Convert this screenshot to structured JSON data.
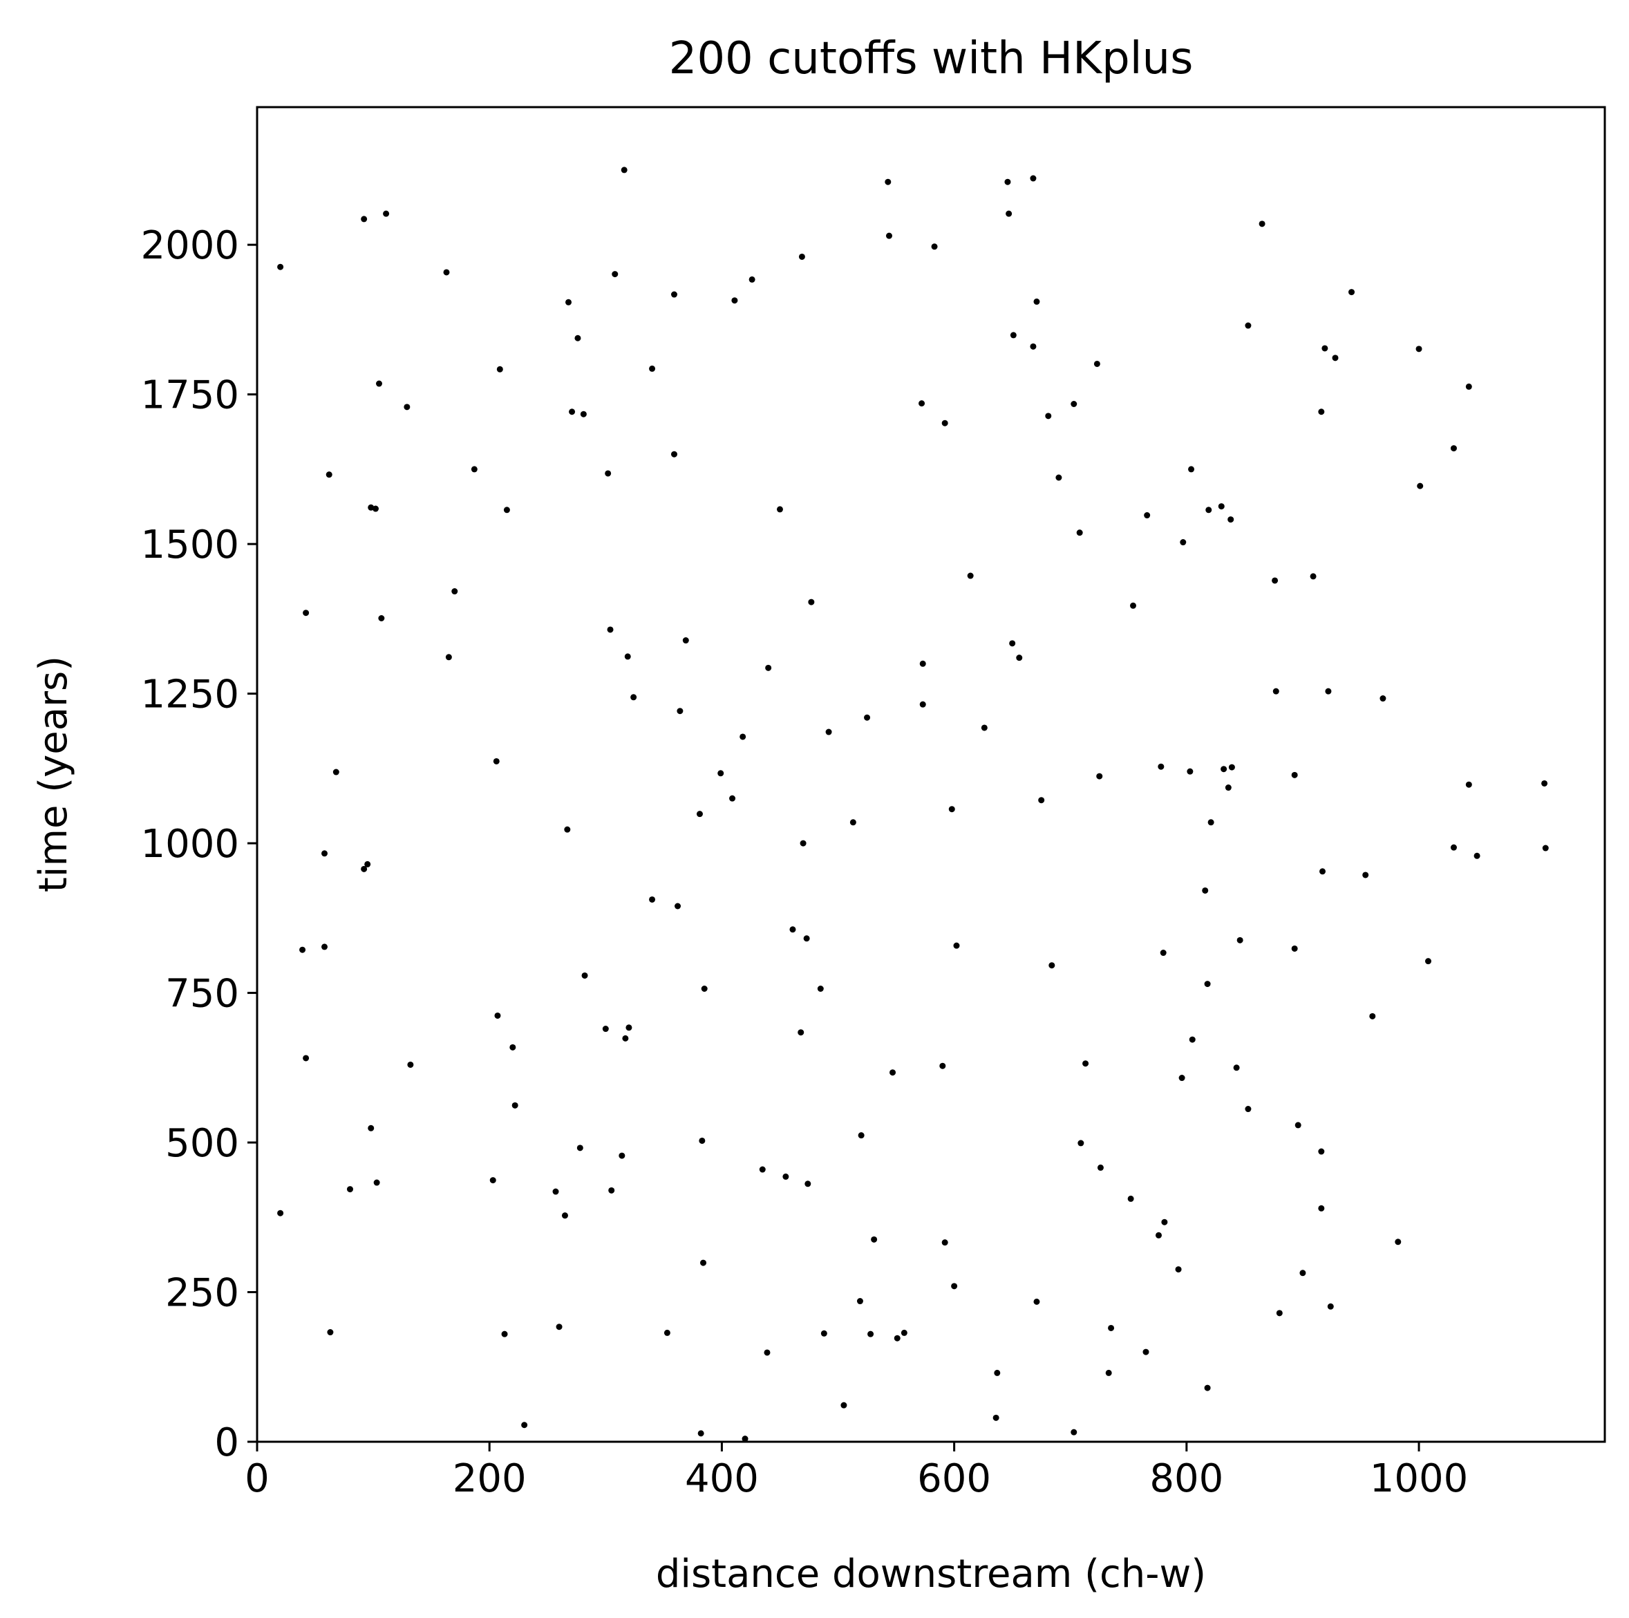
{
  "chart_data": {
    "type": "scatter",
    "title": "200 cutoffs with HKplus",
    "xlabel": "distance downstream (ch-w)",
    "ylabel": "time (years)",
    "xlim": [
      0,
      1160
    ],
    "ylim": [
      0,
      2230
    ],
    "xticks": [
      0,
      200,
      400,
      600,
      800,
      1000
    ],
    "yticks": [
      0,
      250,
      500,
      750,
      1000,
      1250,
      1500,
      1750,
      2000
    ],
    "grid": false,
    "legend": "none",
    "marker_color": "#000000",
    "points": [
      [
        20,
        1963
      ],
      [
        20,
        382
      ],
      [
        39,
        822
      ],
      [
        42,
        1385
      ],
      [
        42,
        641
      ],
      [
        58,
        983
      ],
      [
        58,
        827
      ],
      [
        62,
        1616
      ],
      [
        63,
        183
      ],
      [
        68,
        1119
      ],
      [
        80,
        422
      ],
      [
        92,
        2043
      ],
      [
        92,
        957
      ],
      [
        95,
        965
      ],
      [
        98,
        1561
      ],
      [
        98,
        524
      ],
      [
        102,
        1559
      ],
      [
        103,
        433
      ],
      [
        105,
        1768
      ],
      [
        107,
        1376
      ],
      [
        111,
        2052
      ],
      [
        129,
        1729
      ],
      [
        132,
        630
      ],
      [
        163,
        1954
      ],
      [
        165,
        1311
      ],
      [
        170,
        1421
      ],
      [
        187,
        1625
      ],
      [
        203,
        437
      ],
      [
        206,
        1137
      ],
      [
        207,
        712
      ],
      [
        209,
        1792
      ],
      [
        213,
        180
      ],
      [
        215,
        1557
      ],
      [
        220,
        659
      ],
      [
        222,
        562
      ],
      [
        230,
        28
      ],
      [
        257,
        418
      ],
      [
        260,
        192
      ],
      [
        265,
        378
      ],
      [
        267,
        1023
      ],
      [
        268,
        1904
      ],
      [
        271,
        1721
      ],
      [
        276,
        1844
      ],
      [
        278,
        491
      ],
      [
        281,
        1717
      ],
      [
        282,
        779
      ],
      [
        300,
        690
      ],
      [
        302,
        1618
      ],
      [
        304,
        1357
      ],
      [
        305,
        420
      ],
      [
        308,
        1951
      ],
      [
        314,
        478
      ],
      [
        316,
        2125
      ],
      [
        317,
        674
      ],
      [
        319,
        1312
      ],
      [
        320,
        692
      ],
      [
        324,
        1244
      ],
      [
        340,
        1793
      ],
      [
        340,
        906
      ],
      [
        353,
        182
      ],
      [
        359,
        1917
      ],
      [
        359,
        1650
      ],
      [
        362,
        895
      ],
      [
        364,
        1221
      ],
      [
        369,
        1339
      ],
      [
        381,
        1049
      ],
      [
        382,
        14
      ],
      [
        383,
        503
      ],
      [
        384,
        299
      ],
      [
        385,
        757
      ],
      [
        399,
        1117
      ],
      [
        409,
        1075
      ],
      [
        411,
        1907
      ],
      [
        418,
        1178
      ],
      [
        420,
        5
      ],
      [
        426,
        1942
      ],
      [
        435,
        455
      ],
      [
        439,
        149
      ],
      [
        440,
        1293
      ],
      [
        450,
        1558
      ],
      [
        455,
        443
      ],
      [
        461,
        856
      ],
      [
        468,
        684
      ],
      [
        469,
        1980
      ],
      [
        470,
        1000
      ],
      [
        473,
        841
      ],
      [
        474,
        431
      ],
      [
        477,
        1403
      ],
      [
        485,
        757
      ],
      [
        488,
        181
      ],
      [
        492,
        1186
      ],
      [
        505,
        61
      ],
      [
        513,
        1035
      ],
      [
        519,
        235
      ],
      [
        520,
        512
      ],
      [
        525,
        1210
      ],
      [
        528,
        180
      ],
      [
        531,
        338
      ],
      [
        543,
        2105
      ],
      [
        544,
        2015
      ],
      [
        547,
        617
      ],
      [
        551,
        173
      ],
      [
        557,
        182
      ],
      [
        572,
        1735
      ],
      [
        573,
        1300
      ],
      [
        573,
        1232
      ],
      [
        583,
        1997
      ],
      [
        590,
        628
      ],
      [
        592,
        333
      ],
      [
        592,
        1702
      ],
      [
        598,
        1057
      ],
      [
        600,
        260
      ],
      [
        602,
        829
      ],
      [
        614,
        1447
      ],
      [
        626,
        1193
      ],
      [
        636,
        40
      ],
      [
        637,
        115
      ],
      [
        646,
        2105
      ],
      [
        647,
        2052
      ],
      [
        650,
        1334
      ],
      [
        651,
        1849
      ],
      [
        656,
        1310
      ],
      [
        668,
        2111
      ],
      [
        668,
        1830
      ],
      [
        671,
        1905
      ],
      [
        671,
        234
      ],
      [
        675,
        1072
      ],
      [
        681,
        1714
      ],
      [
        684,
        796
      ],
      [
        690,
        1611
      ],
      [
        703,
        1734
      ],
      [
        703,
        16
      ],
      [
        708,
        1519
      ],
      [
        709,
        499
      ],
      [
        713,
        632
      ],
      [
        723,
        1801
      ],
      [
        725,
        1112
      ],
      [
        726,
        458
      ],
      [
        733,
        115
      ],
      [
        735,
        190
      ],
      [
        752,
        406
      ],
      [
        754,
        1397
      ],
      [
        765,
        150
      ],
      [
        766,
        1548
      ],
      [
        776,
        345
      ],
      [
        778,
        1128
      ],
      [
        780,
        817
      ],
      [
        781,
        367
      ],
      [
        793,
        288
      ],
      [
        796,
        608
      ],
      [
        797,
        1503
      ],
      [
        803,
        1120
      ],
      [
        804,
        1625
      ],
      [
        805,
        672
      ],
      [
        816,
        921
      ],
      [
        818,
        765
      ],
      [
        818,
        90
      ],
      [
        819,
        1557
      ],
      [
        821,
        1035
      ],
      [
        830,
        1563
      ],
      [
        832,
        1124
      ],
      [
        836,
        1093
      ],
      [
        838,
        1541
      ],
      [
        839,
        1127
      ],
      [
        843,
        625
      ],
      [
        846,
        838
      ],
      [
        853,
        556
      ],
      [
        853,
        1865
      ],
      [
        865,
        2035
      ],
      [
        876,
        1439
      ],
      [
        877,
        1254
      ],
      [
        880,
        215
      ],
      [
        893,
        1114
      ],
      [
        893,
        824
      ],
      [
        896,
        529
      ],
      [
        900,
        282
      ],
      [
        909,
        1446
      ],
      [
        916,
        1721
      ],
      [
        916,
        485
      ],
      [
        916,
        390
      ],
      [
        917,
        953
      ],
      [
        919,
        1827
      ],
      [
        922,
        1254
      ],
      [
        924,
        226
      ],
      [
        928,
        1811
      ],
      [
        942,
        1921
      ],
      [
        954,
        947
      ],
      [
        960,
        711
      ],
      [
        969,
        1242
      ],
      [
        982,
        334
      ],
      [
        1000,
        1826
      ],
      [
        1001,
        1597
      ],
      [
        1008,
        803
      ],
      [
        1030,
        1660
      ],
      [
        1030,
        993
      ],
      [
        1043,
        1763
      ],
      [
        1043,
        1098
      ],
      [
        1050,
        979
      ],
      [
        1108,
        1100
      ],
      [
        1109,
        992
      ]
    ]
  }
}
